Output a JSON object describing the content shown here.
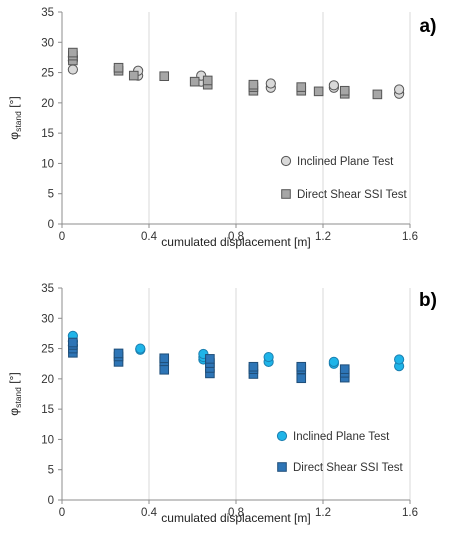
{
  "chart_data": [
    {
      "type": "scatter",
      "panel_label": "a)",
      "xlabel": "cumulated displacement [m]",
      "ylabel_main": "φ",
      "ylabel_sub": "stand",
      "ylabel_unit": "[°]",
      "xlim": [
        0,
        1.6
      ],
      "ylim": [
        0,
        35
      ],
      "xticks": [
        "0",
        "0.4",
        "0.8",
        "1.2",
        "1.6"
      ],
      "xtick_values": [
        0,
        0.4,
        0.8,
        1.2,
        1.6
      ],
      "yticks": [
        "0",
        "5",
        "10",
        "15",
        "20",
        "25",
        "30",
        "35"
      ],
      "ytick_values": [
        0,
        5,
        10,
        15,
        20,
        25,
        30,
        35
      ],
      "grid": "vertical",
      "legend_position": "bottom-right",
      "series": [
        {
          "name": "Inclined Plane Test",
          "marker": "circle",
          "fill": "#d9d9d9",
          "stroke": "#555555",
          "points": [
            [
              0.05,
              25.5
            ],
            [
              0.05,
              27.0
            ],
            [
              0.05,
              27.6
            ],
            [
              0.35,
              24.5
            ],
            [
              0.35,
              25.3
            ],
            [
              0.64,
              23.5
            ],
            [
              0.64,
              24.5
            ],
            [
              0.96,
              22.5
            ],
            [
              0.96,
              23.2
            ],
            [
              1.25,
              22.5
            ],
            [
              1.25,
              22.9
            ],
            [
              1.55,
              21.5
            ],
            [
              1.55,
              22.2
            ]
          ]
        },
        {
          "name": "Direct Shear SSI Test",
          "marker": "square",
          "fill": "#a6a6a6",
          "stroke": "#555555",
          "points": [
            [
              0.05,
              27.0
            ],
            [
              0.05,
              27.8
            ],
            [
              0.05,
              28.3
            ],
            [
              0.26,
              25.3
            ],
            [
              0.26,
              25.8
            ],
            [
              0.33,
              24.5
            ],
            [
              0.47,
              24.4
            ],
            [
              0.61,
              23.5
            ],
            [
              0.67,
              23.0
            ],
            [
              0.67,
              23.7
            ],
            [
              0.88,
              22.0
            ],
            [
              0.88,
              22.6
            ],
            [
              0.88,
              23.0
            ],
            [
              1.1,
              22.0
            ],
            [
              1.1,
              22.6
            ],
            [
              1.18,
              21.9
            ],
            [
              1.3,
              21.5
            ],
            [
              1.3,
              22.0
            ],
            [
              1.45,
              21.4
            ]
          ]
        }
      ]
    },
    {
      "type": "scatter",
      "panel_label": "b)",
      "xlabel": "cumulated displacement [m]",
      "ylabel_main": "φ",
      "ylabel_sub": "stand",
      "ylabel_unit": "[°]",
      "xlim": [
        0,
        1.6
      ],
      "ylim": [
        0,
        35
      ],
      "xticks": [
        "0",
        "0.4",
        "0.8",
        "1.2",
        "1.6"
      ],
      "xtick_values": [
        0,
        0.4,
        0.8,
        1.2,
        1.6
      ],
      "yticks": [
        "0",
        "5",
        "10",
        "15",
        "20",
        "25",
        "30",
        "35"
      ],
      "ytick_values": [
        0,
        5,
        10,
        15,
        20,
        25,
        30,
        35
      ],
      "grid": "vertical",
      "legend_position": "bottom-right",
      "series": [
        {
          "name": "Inclined Plane Test",
          "marker": "circle",
          "fill": "#1fb4e8",
          "stroke": "#1a7fb0",
          "points": [
            [
              0.05,
              25.5
            ],
            [
              0.05,
              26.2
            ],
            [
              0.05,
              27.1
            ],
            [
              0.36,
              24.8
            ],
            [
              0.36,
              25.0
            ],
            [
              0.65,
              23.2
            ],
            [
              0.65,
              23.6
            ],
            [
              0.65,
              24.1
            ],
            [
              0.95,
              22.8
            ],
            [
              0.95,
              23.6
            ],
            [
              1.25,
              22.5
            ],
            [
              1.25,
              22.8
            ],
            [
              1.55,
              22.1
            ],
            [
              1.55,
              23.2
            ]
          ]
        },
        {
          "name": "Direct Shear SSI Test",
          "marker": "square",
          "fill": "#2e75b6",
          "stroke": "#1f4e79",
          "points": [
            [
              0.05,
              24.3
            ],
            [
              0.05,
              25.0
            ],
            [
              0.05,
              25.6
            ],
            [
              0.05,
              26.0
            ],
            [
              0.26,
              22.8
            ],
            [
              0.26,
              23.7
            ],
            [
              0.26,
              24.2
            ],
            [
              0.47,
              21.5
            ],
            [
              0.47,
              22.9
            ],
            [
              0.47,
              23.4
            ],
            [
              0.68,
              20.9
            ],
            [
              0.68,
              21.8
            ],
            [
              0.68,
              22.6
            ],
            [
              0.68,
              23.3
            ],
            [
              0.88,
              20.8
            ],
            [
              0.88,
              21.6
            ],
            [
              0.88,
              22.0
            ],
            [
              1.1,
              20.1
            ],
            [
              1.1,
              21.6
            ],
            [
              1.1,
              22.0
            ],
            [
              1.3,
              20.2
            ],
            [
              1.3,
              21.0
            ],
            [
              1.3,
              21.6
            ]
          ]
        }
      ]
    }
  ]
}
